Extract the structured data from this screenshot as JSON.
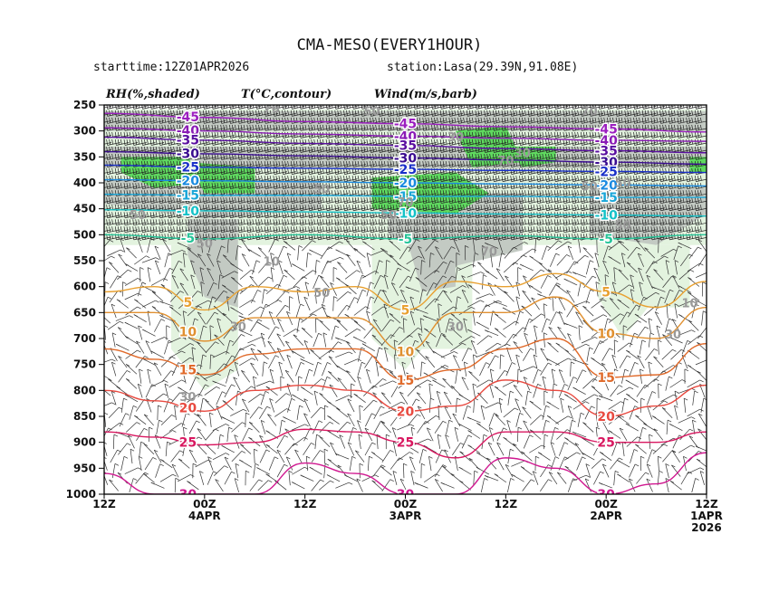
{
  "chart_data": {
    "type": "line",
    "title": "CMA-MESO(EVERY1HOUR)",
    "subtitle_left": "starttime:12Z01APR2026",
    "subtitle_right": "station:Lasa(29.39N,91.08E)",
    "legend": {
      "rh": "RH(%,shaded)",
      "temp": "T(°C,contour)",
      "wind": "Wind(m/s,barb)"
    },
    "y_axis": {
      "label": "",
      "ticks": [
        250,
        300,
        350,
        400,
        450,
        500,
        550,
        600,
        650,
        700,
        750,
        800,
        850,
        900,
        950,
        1000
      ],
      "range": [
        1000,
        250
      ]
    },
    "x_axis": {
      "label": "",
      "direction": "time runs right-to-left",
      "hours_range": [
        0,
        72
      ],
      "ticks": [
        {
          "hour": 72,
          "lines": [
            "12Z"
          ]
        },
        {
          "hour": 60,
          "lines": [
            "00Z",
            "4APR"
          ]
        },
        {
          "hour": 48,
          "lines": [
            "12Z"
          ]
        },
        {
          "hour": 36,
          "lines": [
            "00Z",
            "3APR"
          ]
        },
        {
          "hour": 24,
          "lines": [
            "12Z"
          ]
        },
        {
          "hour": 12,
          "lines": [
            "00Z",
            "2APR"
          ]
        },
        {
          "hour": 0,
          "lines": [
            "12Z",
            "1APR",
            "2026"
          ]
        }
      ]
    },
    "rh_shading": [
      {
        "level": ">=50",
        "color": "#e3f3df"
      },
      {
        "level": ">=70",
        "color": "#c3cac3"
      },
      {
        "level": ">=90",
        "color": "#5fd95f"
      }
    ],
    "temperature_contours": [
      {
        "value": -45,
        "color": "#9b1fbf",
        "pressure_at_hour": [
          [
            0,
            302
          ],
          [
            12,
            296
          ],
          [
            24,
            292
          ],
          [
            36,
            286
          ],
          [
            48,
            282
          ],
          [
            60,
            274
          ],
          [
            72,
            266
          ]
        ]
      },
      {
        "value": -40,
        "color": "#8a1bb5",
        "pressure_at_hour": [
          [
            0,
            320
          ],
          [
            12,
            318
          ],
          [
            24,
            314
          ],
          [
            36,
            310
          ],
          [
            48,
            306
          ],
          [
            60,
            300
          ],
          [
            72,
            294
          ]
        ]
      },
      {
        "value": -35,
        "color": "#5a0fa0",
        "pressure_at_hour": [
          [
            0,
            342
          ],
          [
            12,
            338
          ],
          [
            24,
            334
          ],
          [
            36,
            328
          ],
          [
            48,
            324
          ],
          [
            60,
            318
          ],
          [
            72,
            312
          ]
        ]
      },
      {
        "value": -30,
        "color": "#3a0c90",
        "pressure_at_hour": [
          [
            0,
            364
          ],
          [
            12,
            360
          ],
          [
            24,
            356
          ],
          [
            36,
            352
          ],
          [
            48,
            348
          ],
          [
            60,
            344
          ],
          [
            72,
            340
          ]
        ]
      },
      {
        "value": -25,
        "color": "#1a30c8",
        "pressure_at_hour": [
          [
            0,
            380
          ],
          [
            12,
            378
          ],
          [
            24,
            376
          ],
          [
            36,
            374
          ],
          [
            48,
            372
          ],
          [
            60,
            370
          ],
          [
            72,
            366
          ]
        ]
      },
      {
        "value": -20,
        "color": "#1a8ae0",
        "pressure_at_hour": [
          [
            0,
            406
          ],
          [
            12,
            404
          ],
          [
            24,
            402
          ],
          [
            36,
            400
          ],
          [
            48,
            398
          ],
          [
            60,
            396
          ],
          [
            72,
            394
          ]
        ]
      },
      {
        "value": -15,
        "color": "#19a6d8",
        "pressure_at_hour": [
          [
            0,
            428
          ],
          [
            12,
            428
          ],
          [
            24,
            426
          ],
          [
            36,
            426
          ],
          [
            48,
            424
          ],
          [
            60,
            424
          ],
          [
            72,
            422
          ]
        ]
      },
      {
        "value": -10,
        "color": "#14c2c8",
        "pressure_at_hour": [
          [
            0,
            464
          ],
          [
            12,
            462
          ],
          [
            24,
            460
          ],
          [
            36,
            458
          ],
          [
            48,
            456
          ],
          [
            60,
            454
          ],
          [
            72,
            452
          ]
        ]
      },
      {
        "value": -5,
        "color": "#25c498",
        "pressure_at_hour": [
          [
            0,
            500
          ],
          [
            12,
            508
          ],
          [
            24,
            502
          ],
          [
            36,
            508
          ],
          [
            48,
            500
          ],
          [
            60,
            508
          ],
          [
            72,
            500
          ]
        ]
      },
      {
        "value": 5,
        "color": "#e8a030",
        "pressure_at_hour": [
          [
            0,
            590
          ],
          [
            6,
            640
          ],
          [
            12,
            610
          ],
          [
            18,
            575
          ],
          [
            24,
            600
          ],
          [
            30,
            590
          ],
          [
            36,
            645
          ],
          [
            42,
            600
          ],
          [
            48,
            610
          ],
          [
            54,
            600
          ],
          [
            60,
            645
          ],
          [
            66,
            600
          ],
          [
            72,
            610
          ]
        ]
      },
      {
        "value": 10,
        "color": "#e09030",
        "pressure_at_hour": [
          [
            0,
            640
          ],
          [
            6,
            700
          ],
          [
            12,
            690
          ],
          [
            18,
            620
          ],
          [
            24,
            650
          ],
          [
            30,
            650
          ],
          [
            36,
            725
          ],
          [
            42,
            660
          ],
          [
            48,
            660
          ],
          [
            54,
            660
          ],
          [
            60,
            705
          ],
          [
            66,
            650
          ],
          [
            72,
            650
          ]
        ]
      },
      {
        "value": 15,
        "color": "#e06a2a",
        "pressure_at_hour": [
          [
            0,
            710
          ],
          [
            6,
            770
          ],
          [
            12,
            775
          ],
          [
            18,
            700
          ],
          [
            24,
            720
          ],
          [
            30,
            760
          ],
          [
            36,
            780
          ],
          [
            42,
            720
          ],
          [
            48,
            720
          ],
          [
            54,
            730
          ],
          [
            60,
            770
          ],
          [
            66,
            740
          ],
          [
            72,
            720
          ]
        ]
      },
      {
        "value": 20,
        "color": "#e84a40",
        "pressure_at_hour": [
          [
            0,
            790
          ],
          [
            6,
            830
          ],
          [
            12,
            850
          ],
          [
            18,
            800
          ],
          [
            24,
            780
          ],
          [
            30,
            830
          ],
          [
            36,
            840
          ],
          [
            42,
            800
          ],
          [
            48,
            790
          ],
          [
            54,
            800
          ],
          [
            60,
            840
          ],
          [
            66,
            820
          ],
          [
            72,
            800
          ]
        ]
      },
      {
        "value": 25,
        "color": "#d81860",
        "pressure_at_hour": [
          [
            0,
            880
          ],
          [
            6,
            900
          ],
          [
            12,
            900
          ],
          [
            18,
            880
          ],
          [
            24,
            880
          ],
          [
            30,
            930
          ],
          [
            36,
            900
          ],
          [
            42,
            880
          ],
          [
            48,
            875
          ],
          [
            54,
            900
          ],
          [
            60,
            905
          ],
          [
            66,
            890
          ],
          [
            72,
            880
          ]
        ]
      },
      {
        "value": 30,
        "color": "#d01890",
        "pressure_at_hour": [
          [
            0,
            920
          ],
          [
            6,
            980
          ],
          [
            12,
            1000
          ],
          [
            18,
            950
          ],
          [
            24,
            930
          ],
          [
            30,
            1000
          ],
          [
            36,
            1000
          ],
          [
            42,
            960
          ],
          [
            48,
            940
          ],
          [
            54,
            1000
          ],
          [
            60,
            1000
          ],
          [
            66,
            1000
          ],
          [
            72,
            960
          ]
        ]
      }
    ],
    "rh_labels": [
      "70",
      "50",
      "30",
      "50",
      "70",
      "50",
      "70",
      "10",
      "30",
      "50",
      "70",
      "50",
      "10",
      "30",
      "30",
      "50",
      "50",
      "30",
      "70",
      "50",
      "50",
      "30",
      "50"
    ],
    "wind_barbs": "barbs at each grid point; strong westerlies (long barbs) above 500 hPa, light variable winds below"
  }
}
